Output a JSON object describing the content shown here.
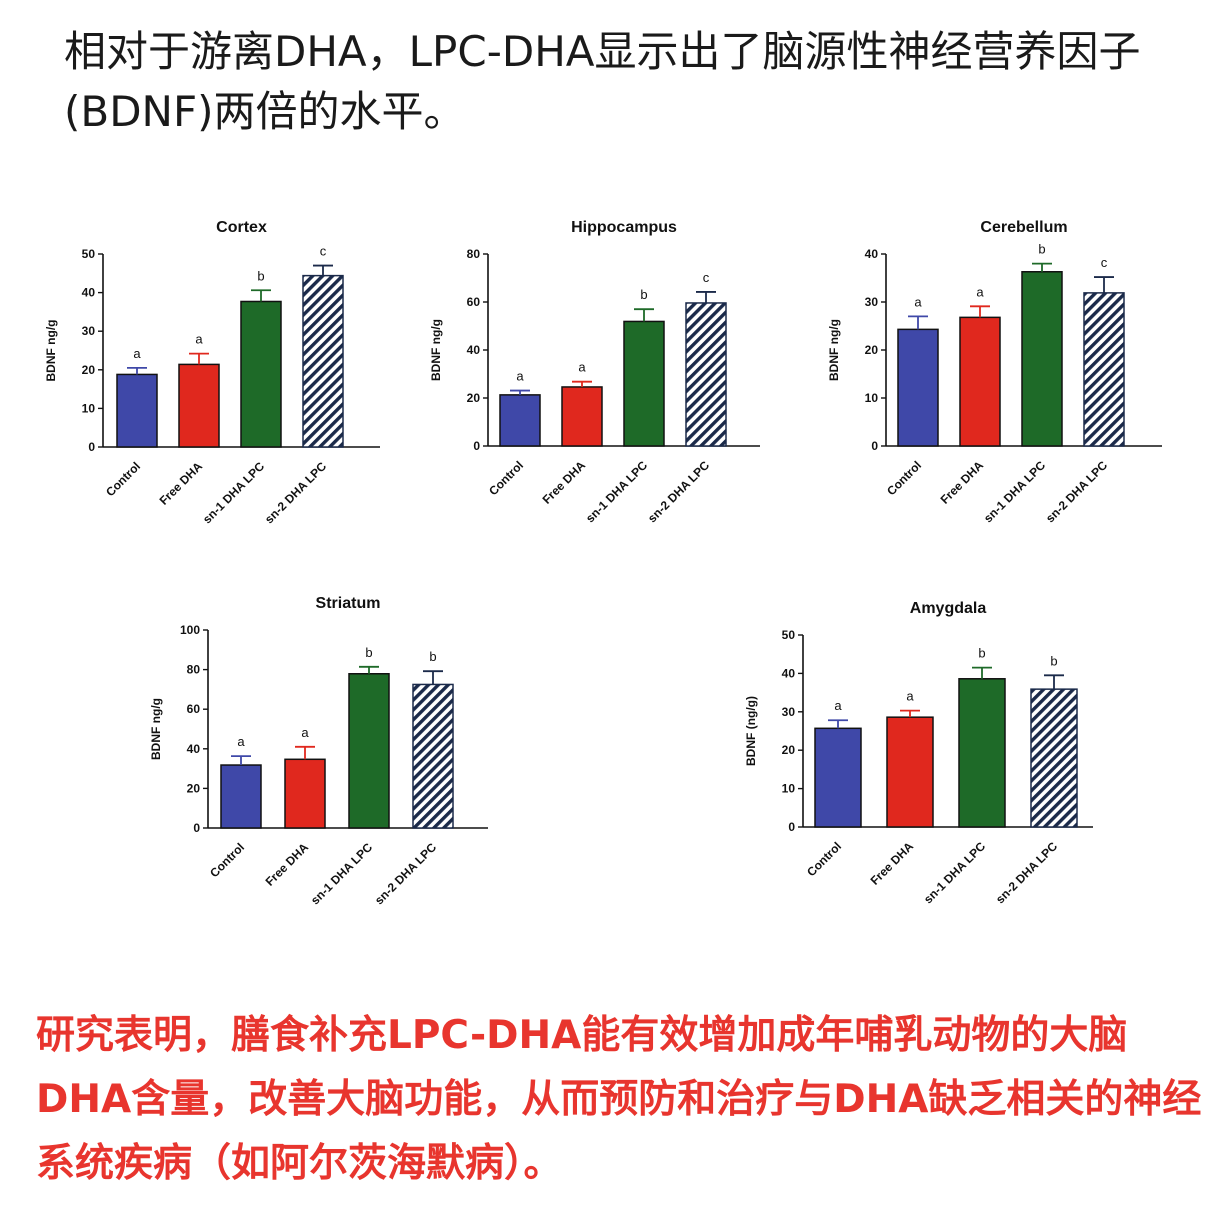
{
  "intro_text": "相对于游离DHA，LPC-DHA显示出了脑源性神经营养因子(BDNF)两倍的水平。",
  "conclusion_text": "研究表明，膳食补充LPC-DHA能有效增加成年哺乳动物的大脑DHA含量，改善大脑功能，从而预防和治疗与DHA缺乏相关的神经系统疾病（如阿尔茨海默病）。",
  "series_colors": {
    "control": "#3f48a8",
    "free_dha": "#e0281e",
    "sn1": "#1e6a28",
    "sn2": "#1b2a4a"
  },
  "chart_data": [
    {
      "type": "bar",
      "title": "Cortex",
      "ylabel": "BDNF ng/g",
      "categories": [
        "Control",
        "Free DHA",
        "sn-1 DHA LPC",
        "sn-2 DHA LPC"
      ],
      "values": [
        18.8,
        21.4,
        37.7,
        44.4
      ],
      "errors": [
        1.7,
        2.8,
        2.9,
        2.6
      ],
      "significance": [
        "a",
        "a",
        "b",
        "c"
      ],
      "ylim": [
        0,
        50
      ],
      "yticks": [
        0,
        10,
        20,
        30,
        40,
        50
      ]
    },
    {
      "type": "bar",
      "title": "Hippocampus",
      "ylabel": "BDNF ng/g",
      "categories": [
        "Control",
        "Free DHA",
        "sn-1 DHA LPC",
        "sn-2 DHA LPC"
      ],
      "values": [
        21.3,
        24.6,
        51.9,
        59.6
      ],
      "errors": [
        1.8,
        2.2,
        5.1,
        4.6
      ],
      "significance": [
        "a",
        "a",
        "b",
        "c"
      ],
      "ylim": [
        0,
        80
      ],
      "yticks": [
        0,
        20,
        40,
        60,
        80
      ]
    },
    {
      "type": "bar",
      "title": "Cerebellum",
      "ylabel": "BDNF ng/g",
      "categories": [
        "Control",
        "Free DHA",
        "sn-1 DHA LPC",
        "sn-2 DHA LPC"
      ],
      "values": [
        24.3,
        26.8,
        36.3,
        31.9
      ],
      "errors": [
        2.7,
        2.3,
        1.7,
        3.3
      ],
      "significance": [
        "a",
        "a",
        "b",
        "c"
      ],
      "ylim": [
        0,
        40
      ],
      "yticks": [
        0,
        10,
        20,
        30,
        40
      ]
    },
    {
      "type": "bar",
      "title": "Striatum",
      "ylabel": "BDNF ng/g",
      "categories": [
        "Control",
        "Free DHA",
        "sn-1 DHA LPC",
        "sn-2 DHA LPC"
      ],
      "values": [
        31.8,
        34.7,
        77.9,
        72.5
      ],
      "errors": [
        4.5,
        6.3,
        3.5,
        6.7
      ],
      "significance": [
        "a",
        "a",
        "b",
        "b"
      ],
      "ylim": [
        0,
        100
      ],
      "yticks": [
        0,
        20,
        40,
        60,
        80,
        100
      ]
    },
    {
      "type": "bar",
      "title": "Amygdala",
      "ylabel": "BDNF (ng/g)",
      "categories": [
        "Control",
        "Free DHA",
        "sn-1 DHA LPC",
        "sn-2 DHA LPC"
      ],
      "values": [
        25.7,
        28.6,
        38.6,
        35.9
      ],
      "errors": [
        2.1,
        1.7,
        2.9,
        3.6
      ],
      "significance": [
        "a",
        "a",
        "b",
        "b"
      ],
      "ylim": [
        0,
        50
      ],
      "yticks": [
        0,
        10,
        20,
        30,
        40,
        50
      ]
    }
  ]
}
